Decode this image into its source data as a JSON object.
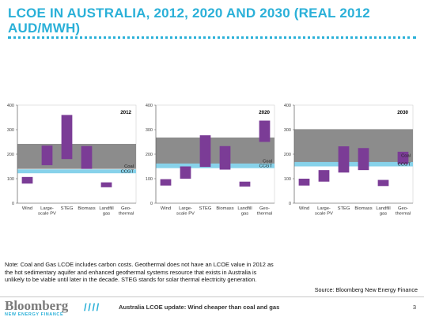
{
  "slide": {
    "title": "LCOE IN AUSTRALIA, 2012, 2020 AND 2030 (REAL 2012 AUD/MWH)",
    "note": "Note: Coal and Gas LCOE includes carbon costs. Geothermal does not have an LCOE value in 2012 as the hot sedimentary aquifer and enhanced geothermal systems resource that exists in Australia is unlikely to be viable until later in the decade. STEG stands for solar thermal electricity generation.",
    "source": "Source: Bloomberg New Energy Finance",
    "footer_text": "Australia LCOE update: Wind cheaper than coal and gas",
    "page_number": "3",
    "logo_main": "Bloomberg",
    "logo_sub": "NEW ENERGY FINANCE",
    "slashes": "/ / / /",
    "colors": {
      "accent": "#2ab0d8",
      "coal_band": "#8c8c8c",
      "ccgt_band": "#87d2ea",
      "bar": "#7b3c96"
    }
  },
  "chart_data": [
    {
      "type": "bar",
      "title": "2012",
      "ylim": [
        0,
        400
      ],
      "yticks": [
        0,
        100,
        200,
        300,
        400
      ],
      "categories": [
        "Wind",
        "Large-scale PV",
        "STEG",
        "Biomass",
        "Landfill gas",
        "Geo-thermal"
      ],
      "ranges": [
        [
          80,
          107
        ],
        [
          155,
          235
        ],
        [
          180,
          360
        ],
        [
          140,
          233
        ],
        [
          65,
          85
        ],
        null
      ],
      "bands": [
        {
          "name": "Coal",
          "low": 140,
          "high": 242
        },
        {
          "name": "CCGT",
          "low": 122,
          "high": 138
        }
      ]
    },
    {
      "type": "bar",
      "title": "2020",
      "ylim": [
        0,
        400
      ],
      "yticks": [
        0,
        100,
        200,
        300,
        400
      ],
      "categories": [
        "Wind",
        "Large-scale PV",
        "STEG",
        "Biomass",
        "Landfill gas",
        "Geo-thermal"
      ],
      "ranges": [
        [
          72,
          98
        ],
        [
          100,
          150
        ],
        [
          148,
          277
        ],
        [
          137,
          233
        ],
        [
          68,
          88
        ],
        [
          250,
          337
        ]
      ],
      "bands": [
        {
          "name": "Coal",
          "low": 155,
          "high": 268
        },
        {
          "name": "CCGT",
          "low": 143,
          "high": 162
        }
      ]
    },
    {
      "type": "bar",
      "title": "2030",
      "ylim": [
        0,
        400
      ],
      "yticks": [
        0,
        100,
        200,
        300,
        400
      ],
      "categories": [
        "Wind",
        "Large-scale PV",
        "STEG",
        "Biomass",
        "Landfill gas",
        "Geo-thermal"
      ],
      "ranges": [
        [
          72,
          100
        ],
        [
          88,
          135
        ],
        [
          125,
          232
        ],
        [
          135,
          225
        ],
        [
          70,
          95
        ],
        [
          160,
          210
        ]
      ],
      "bands": [
        {
          "name": "Coal",
          "low": 165,
          "high": 302
        },
        {
          "name": "CCGT",
          "low": 150,
          "high": 168
        }
      ]
    }
  ]
}
